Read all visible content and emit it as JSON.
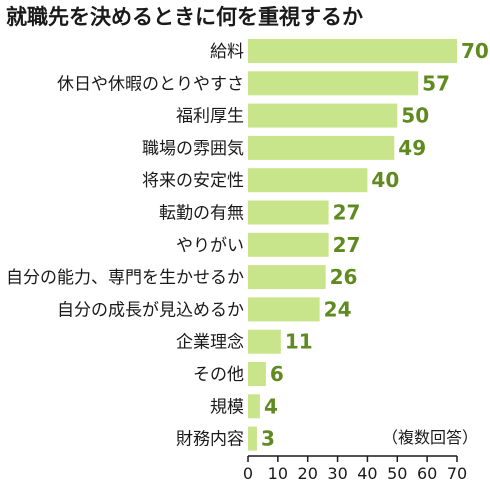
{
  "chart_data": {
    "type": "bar",
    "orientation": "horizontal",
    "title": "就職先を決めるときに何を重視するか",
    "note": "（複数回答）",
    "categories": [
      "給料",
      "休日や休暇のとりやすさ",
      "福利厚生",
      "職場の雰囲気",
      "将来の安定性",
      "転勤の有無",
      "やりがい",
      "自分の能力、専門を生かせるか",
      "自分の成長が見込めるか",
      "企業理念",
      "その他",
      "規模",
      "財務内容"
    ],
    "values": [
      70,
      57,
      50,
      49,
      40,
      27,
      27,
      26,
      24,
      11,
      6,
      4,
      3
    ],
    "xlim": [
      0,
      70
    ],
    "xticks": [
      0,
      10,
      20,
      30,
      40,
      50,
      60,
      70
    ],
    "grid": false,
    "bar_color": "#c9e58c",
    "value_label_color": "#5f8a1f"
  }
}
